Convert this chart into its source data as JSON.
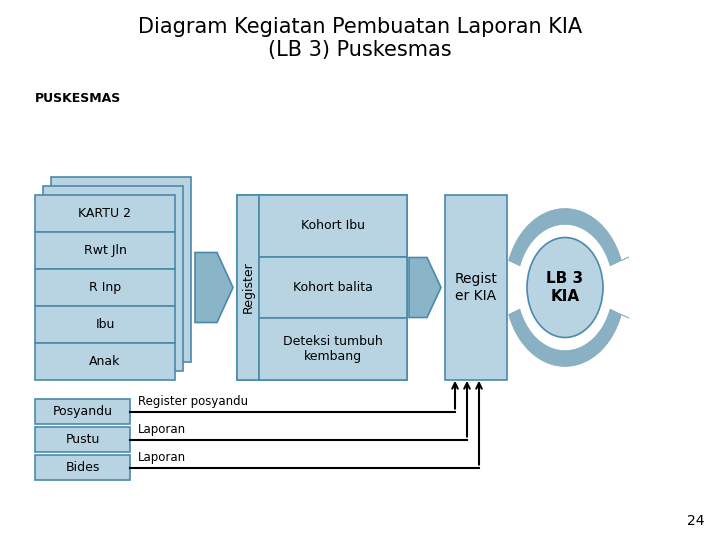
{
  "title": "Diagram Kegiatan Pembuatan Laporan KIA\n(LB 3) Puskesmas",
  "title_fontsize": 15,
  "bg_color": "#ffffff",
  "box_fill": "#b8d4e3",
  "box_edge": "#4a8aaa",
  "arrow_fill": "#8ab4c8",
  "page_number": "24",
  "puskesmas_label": "PUSKESMAS",
  "kartu_stack_labels": [
    "KARTU 2",
    "Rwt Jln",
    "R Inp",
    "Ibu",
    "Anak"
  ],
  "register_label": "Register",
  "register_items": [
    "Kohort Ibu",
    "Kohort balita",
    "Deteksi tumbuh\nkembang"
  ],
  "register_kia_label": "Regist\ner KIA",
  "lb3_label": "LB 3\nKIA",
  "bottom_items": [
    {
      "label": "Posyandu",
      "arrow_text": "Register posyandu"
    },
    {
      "label": "Pustu",
      "arrow_text": "Laporan"
    },
    {
      "label": "Bides",
      "arrow_text": "Laporan"
    }
  ]
}
